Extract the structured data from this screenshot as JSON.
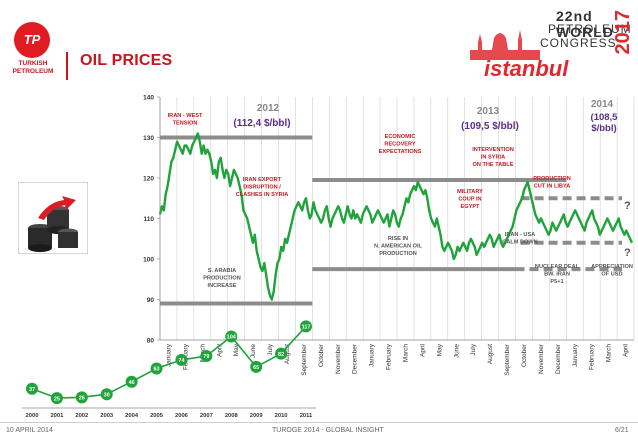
{
  "header": {
    "logo_initials": "TP",
    "logo_name_line1": "TURKISH",
    "logo_name_line2": "PETROLEUM",
    "title": "OIL PRICES",
    "event_line1": "22nd WORLD",
    "event_line2": "PETROLEUM",
    "event_line3": "CONGRESS",
    "event_year": "2017",
    "event_city": "istanbul"
  },
  "footer": {
    "date": "10 APRIL 2014",
    "center": "TUROGE 2014 - GLOBAL INSIGHT",
    "page": "6/21"
  },
  "colors": {
    "brand_red": "#c8161d",
    "line_green": "#1fa33a",
    "avg_bar_gray": "#8c8c8c",
    "annotation_red": "#c8161d",
    "year_purple": "#5b2c8f"
  },
  "chart_data": [
    {
      "type": "line",
      "ylim": [
        80,
        140
      ],
      "yticks": [
        80,
        90,
        100,
        110,
        120,
        130,
        140
      ],
      "x_tick_labels": [
        "January",
        "February",
        "March",
        "April",
        "May",
        "June",
        "July",
        "August",
        "September",
        "October",
        "November",
        "December",
        "January",
        "February",
        "March",
        "April",
        "May",
        "June",
        "July",
        "August",
        "September",
        "October",
        "November",
        "December",
        "January",
        "February",
        "March",
        "April"
      ],
      "grid": "vertical",
      "series": [
        {
          "values": [
            111,
            113,
            112,
            116,
            118,
            121,
            124,
            125,
            127,
            129,
            128,
            127,
            126,
            128,
            128,
            127,
            126,
            128,
            129,
            130,
            131,
            129,
            126,
            128,
            126,
            127,
            126,
            124,
            121,
            122,
            120,
            124,
            125,
            122,
            120,
            122,
            121,
            118,
            120,
            122,
            121,
            120,
            118,
            116,
            112,
            111,
            110,
            108,
            106,
            104,
            106,
            102,
            100,
            98,
            97,
            99,
            96,
            93,
            91,
            90,
            92,
            96,
            99,
            100,
            103,
            102,
            105,
            104,
            106,
            108,
            110,
            112,
            113,
            114,
            113,
            112,
            114,
            115,
            112,
            110,
            111,
            114,
            112,
            111,
            110,
            109,
            110,
            112,
            113,
            110,
            108,
            110,
            111,
            112,
            113,
            112,
            110,
            109,
            111,
            113,
            111,
            110,
            112,
            110,
            111,
            110,
            109,
            111,
            112,
            113,
            112,
            111,
            109,
            110,
            111,
            112,
            111,
            110,
            109,
            110,
            111,
            108,
            110,
            112,
            111,
            109,
            108,
            110,
            111,
            113,
            115,
            114,
            116,
            117,
            118,
            117,
            119,
            118,
            117,
            116,
            117,
            115,
            112,
            110,
            109,
            108,
            110,
            108,
            106,
            103,
            102,
            103,
            104,
            103,
            102,
            100,
            101,
            103,
            102,
            103,
            104,
            103,
            102,
            104,
            105,
            104,
            103,
            101,
            102,
            103,
            104,
            103,
            104,
            105,
            106,
            105,
            103,
            104,
            105,
            106,
            104,
            103,
            104,
            105,
            106,
            107,
            108,
            110,
            112,
            113,
            114,
            115,
            117,
            118,
            119,
            117,
            115,
            113,
            111,
            110,
            109,
            110,
            109,
            108,
            107,
            106,
            107,
            109,
            108,
            107,
            108,
            109,
            110,
            111,
            109,
            108,
            109,
            110,
            111,
            112,
            111,
            110,
            109,
            108,
            107,
            109,
            110,
            111,
            112,
            110,
            109,
            108,
            106,
            107,
            108,
            109,
            110,
            109,
            108,
            107,
            108,
            109,
            110,
            108,
            107,
            106,
            107,
            106,
            105,
            104
          ]
        }
      ],
      "annotations": {
        "years": [
          {
            "year": "2012",
            "avg": "(112,4 $/bbl)"
          },
          {
            "year": "2013",
            "avg": "(109,5  $/bbl)"
          },
          {
            "year": "2014",
            "avg": "(108,5 $/bbl)"
          }
        ],
        "events": [
          "IRAN - WEST TENSION",
          "IRAN EXPORT DISRUPTION / CLASHES IN SYRIA",
          "S. ARABIA PRODUCTION INCREASE",
          "ECONOMIC RECOVERY EXPECTATIONS",
          "RISE IN N. AMERICAN OIL PRODUCTION",
          "INTERVENTION IN SYRIA ON THE TABLE",
          "MILITARY COUP IN EGYPT",
          "PRODUCTION CUT IN LIBYA",
          "IRAN - USA CALM DOWN",
          "NUCLEAR DEAL BW. IRAN P5+1",
          "APPRECIATION OF USD"
        ],
        "question_marks": [
          "?",
          "?"
        ]
      }
    },
    {
      "type": "line",
      "categories": [
        "2000",
        "2001",
        "2002",
        "2003",
        "2004",
        "2005",
        "2006",
        "2007",
        "2008",
        "2009",
        "2010",
        "2011"
      ],
      "series": [
        {
          "values": [
            37,
            25,
            26,
            30,
            46,
            63,
            74,
            79,
            104,
            65,
            82,
            117
          ]
        }
      ]
    }
  ]
}
